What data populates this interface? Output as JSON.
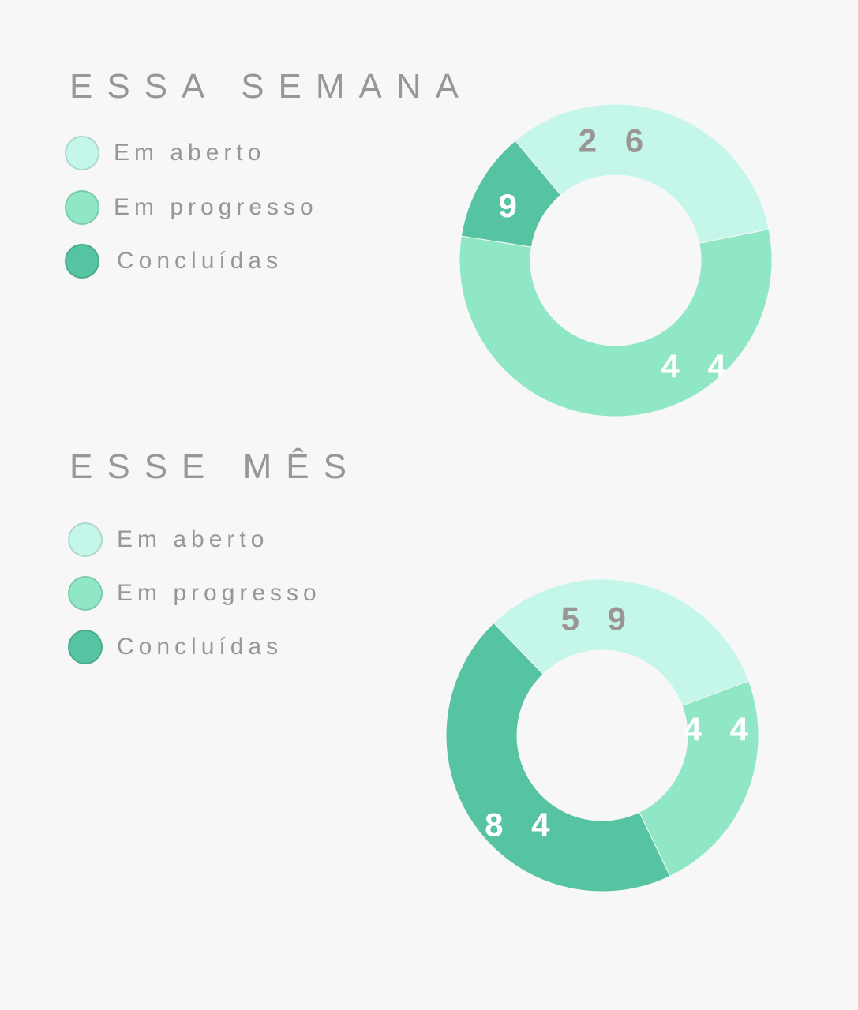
{
  "colors": {
    "open": "#c5f6ea",
    "progress": "#8fe7c5",
    "done": "#56c4a2",
    "label_dark": "#9a9696",
    "label_light": "#ffffff"
  },
  "sections": [
    {
      "title": "ESSA SEMANA",
      "legend": [
        {
          "label": "Em aberto",
          "color": "#c5f6ea"
        },
        {
          "label": "Em progresso",
          "color": "#8fe7c5"
        },
        {
          "label": "Concluídas",
          "color": "#56c4a2"
        }
      ]
    },
    {
      "title": "ESSE MÊS",
      "legend": [
        {
          "label": "Em aberto",
          "color": "#c5f6ea"
        },
        {
          "label": "Em progresso",
          "color": "#8fe7c5"
        },
        {
          "label": "Concluídas",
          "color": "#56c4a2"
        }
      ]
    }
  ],
  "chart_data": [
    {
      "type": "pie",
      "title": "ESSA SEMANA",
      "donut": true,
      "categories": [
        "Em aberto",
        "Em progresso",
        "Concluídas"
      ],
      "values": [
        26,
        44,
        9
      ],
      "labels": [
        "2 6",
        "4 4",
        "9"
      ],
      "colors": [
        "#c5f6ea",
        "#8fe7c5",
        "#56c4a2"
      ]
    },
    {
      "type": "pie",
      "title": "ESSE MÊS",
      "donut": true,
      "categories": [
        "Em aberto",
        "Em progresso",
        "Concluídas"
      ],
      "values": [
        59,
        44,
        84
      ],
      "labels": [
        "5 9",
        "4 4",
        "8 4"
      ],
      "colors": [
        "#c5f6ea",
        "#8fe7c5",
        "#56c4a2"
      ]
    }
  ]
}
